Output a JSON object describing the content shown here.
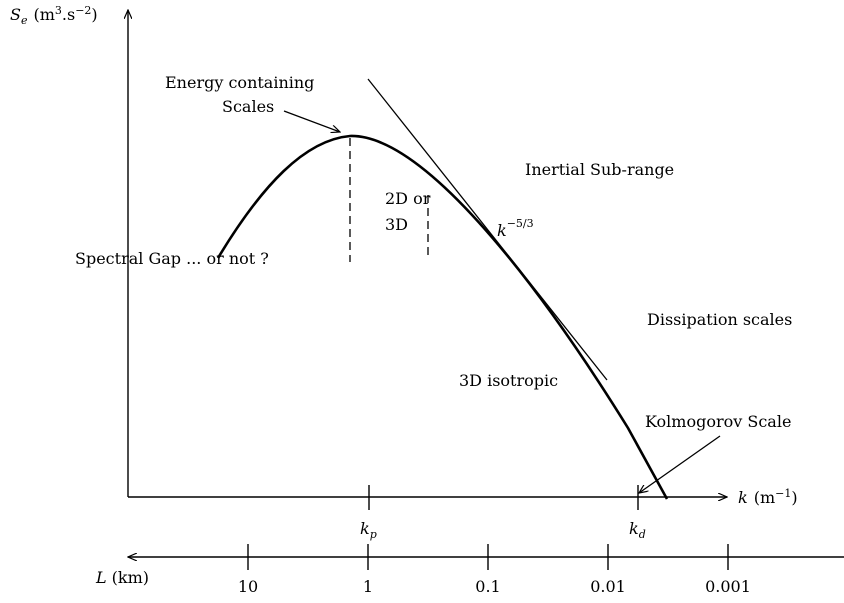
{
  "diagram": {
    "y_axis": {
      "symbol": "S",
      "subscript": "e",
      "unit_open": "(m",
      "unit_exp1": "3",
      "unit_mid": ".s",
      "unit_exp2": "−2",
      "unit_close": ")"
    },
    "x_axis": {
      "symbol": "k",
      "unit_open": "(m",
      "unit_exp": "−1",
      "unit_close": ")"
    },
    "x_ticks": {
      "kp": {
        "symbol": "k",
        "subscript": "p"
      },
      "kd": {
        "symbol": "k",
        "subscript": "d"
      }
    },
    "l_axis": {
      "symbol": "L",
      "unit": "(km)",
      "ticks": [
        "10",
        "1",
        "0.1",
        "0.01",
        "0.001"
      ]
    },
    "annotations": {
      "energy_line1": "Energy containing",
      "energy_line2": "Scales",
      "inertial": "Inertial Sub-range",
      "twod_line1": "2D or",
      "twod_line2": "3D",
      "slope_base": "k",
      "slope_exp": "−5/3",
      "spectral_gap": "Spectral Gap ... or not ?",
      "dissipation": "Dissipation scales",
      "isotropic": "3D isotropic",
      "kolmogorov": "Kolmogorov Scale"
    }
  }
}
